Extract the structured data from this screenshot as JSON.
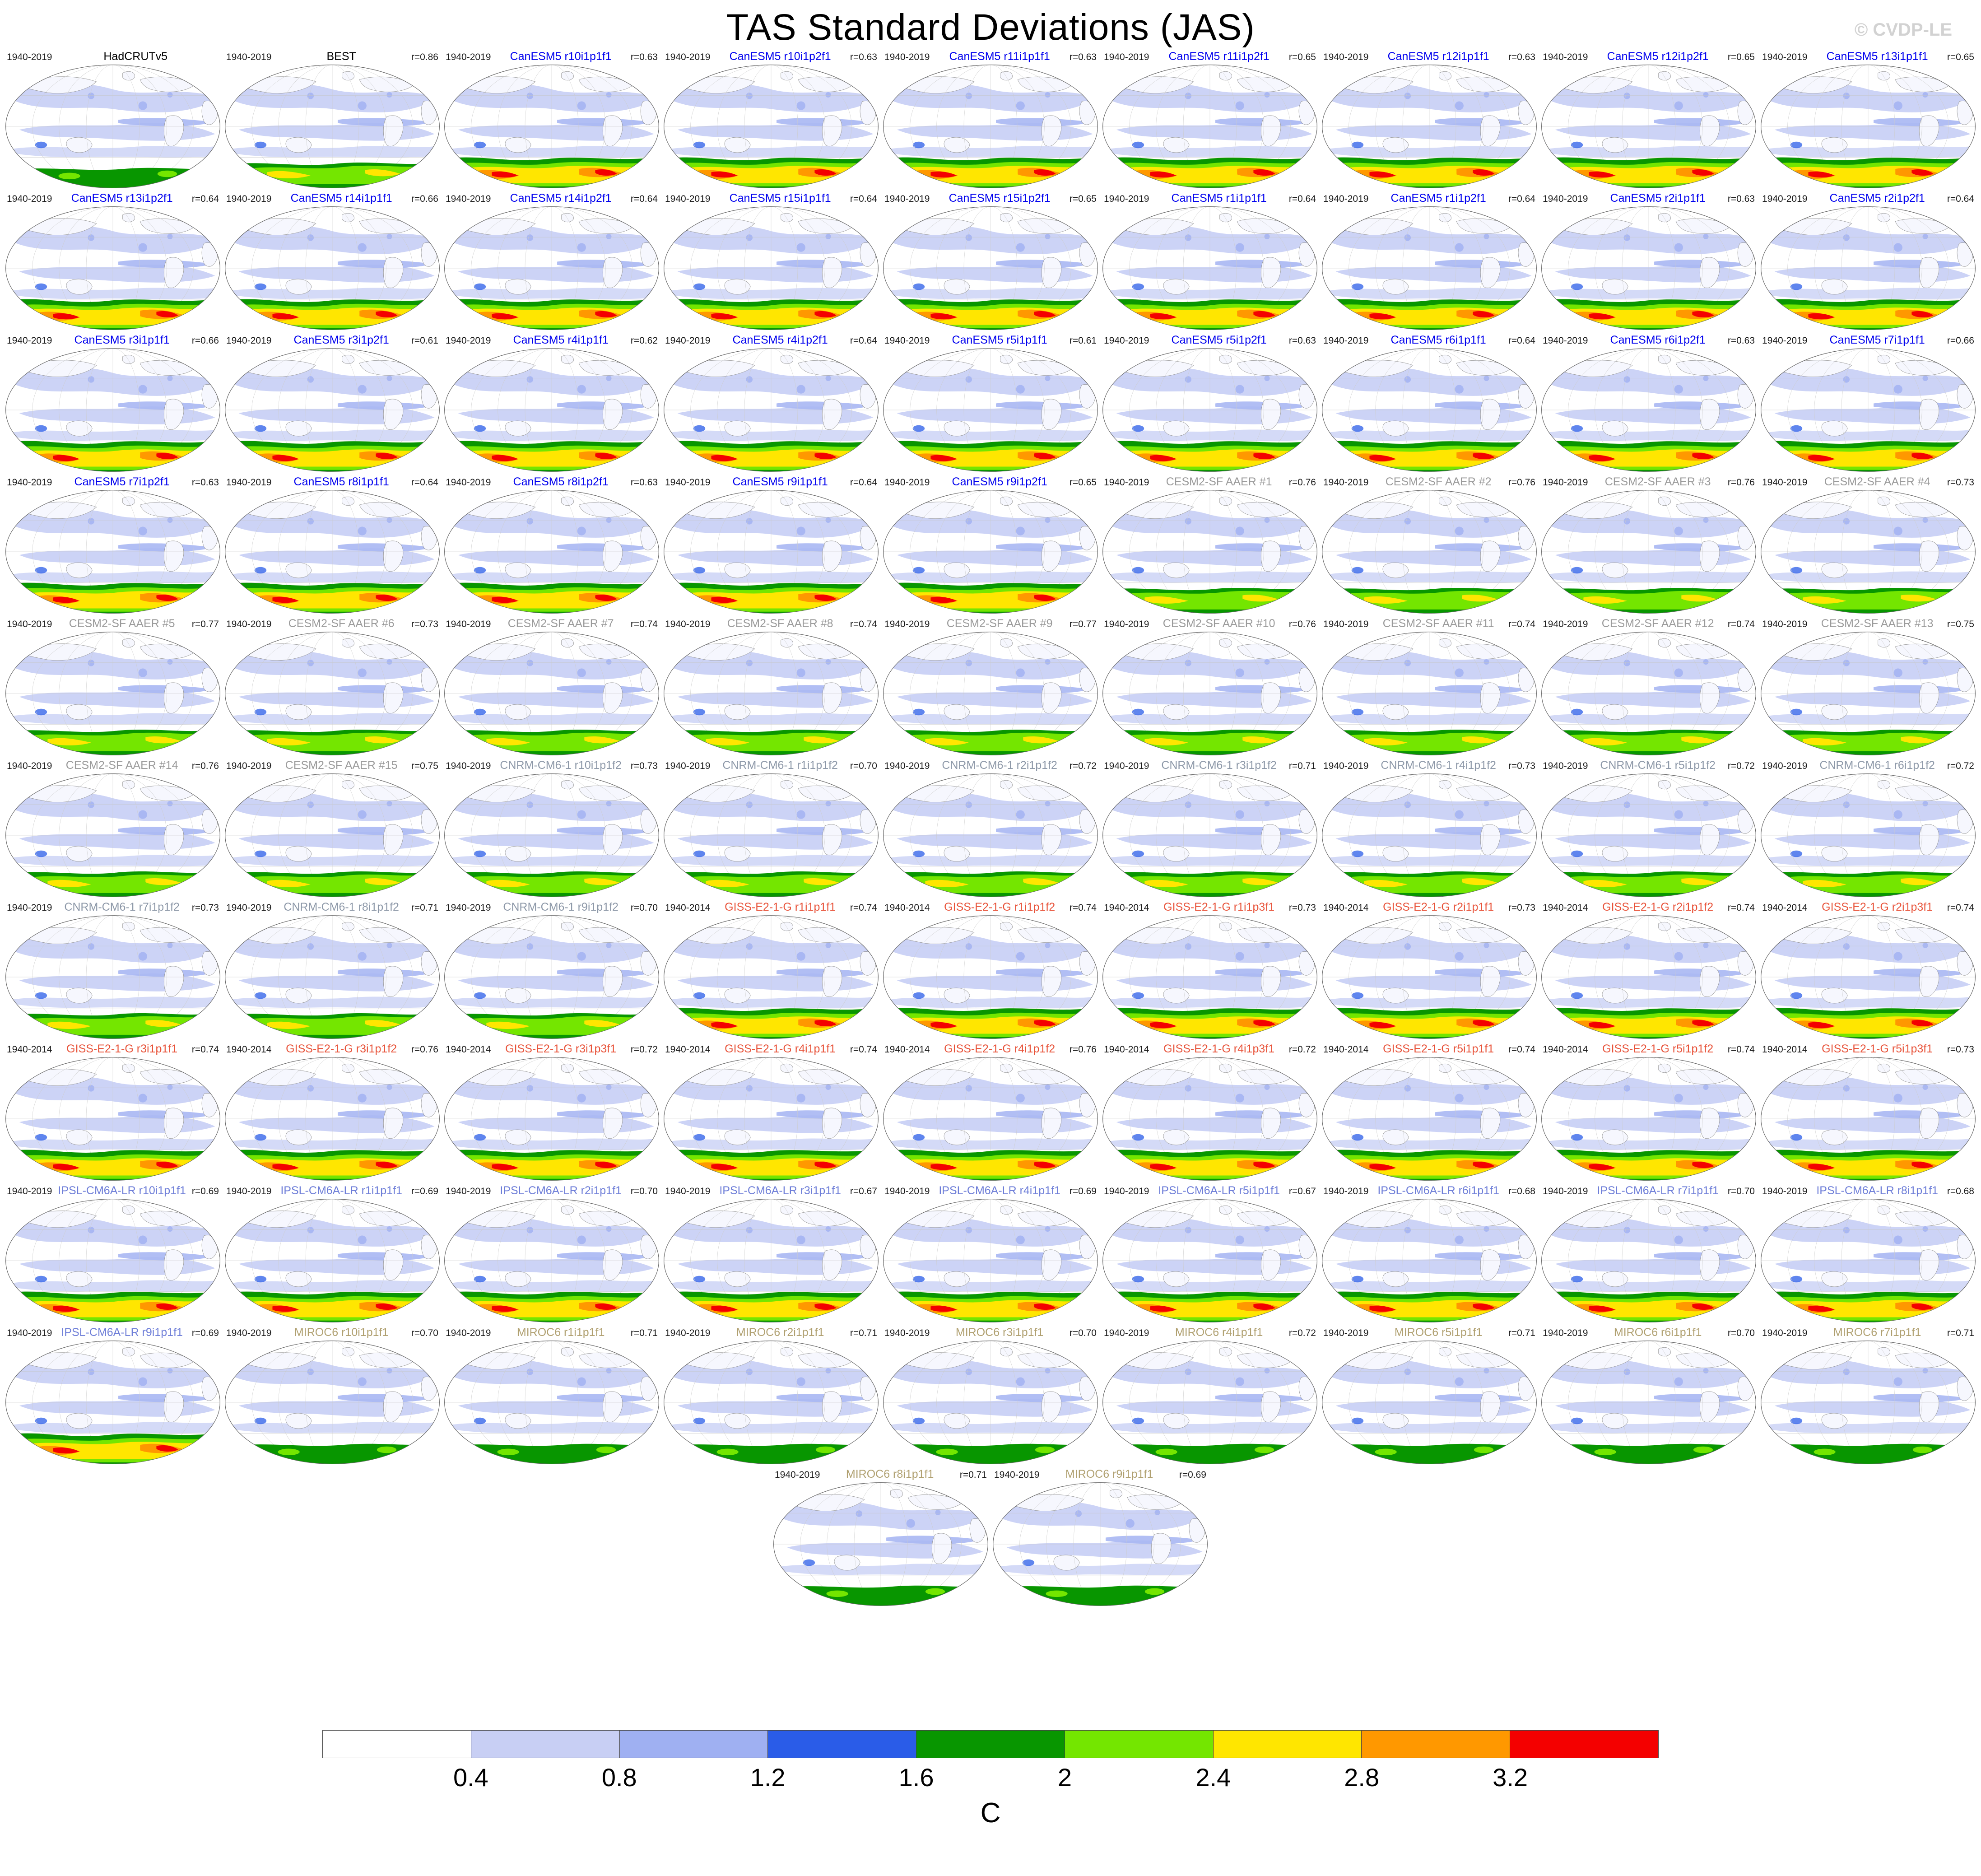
{
  "title": "TAS Standard Deviations (JAS)",
  "watermark": "© CVDP-LE",
  "colorbar": {
    "ticks": [
      "0.4",
      "0.8",
      "1.2",
      "1.6",
      "2",
      "2.4",
      "2.8",
      "3.2"
    ],
    "unit_label": "C",
    "colors": [
      "#FFFFFF",
      "#C8CFF4",
      "#9FB0F2",
      "#2A5CE8",
      "#089600",
      "#74E600",
      "#FFE600",
      "#FF9800",
      "#F40000"
    ]
  },
  "model_styles": {
    "HadCRUTv5": {
      "label_color": "#000000",
      "band": "weak"
    },
    "BEST": {
      "label_color": "#000000",
      "band": "medium"
    },
    "CanESM5": {
      "label_color": "#0000EE",
      "band": "strong"
    },
    "CESM2-SF AAER": {
      "label_color": "#9A9A9A",
      "band": "medium"
    },
    "CNRM-CM6-1": {
      "label_color": "#8D98A8",
      "band": "medium"
    },
    "GISS-E2-1-G": {
      "label_color": "#E8533A",
      "band": "strong"
    },
    "IPSL-CM6A-LR": {
      "label_color": "#6E7ED8",
      "band": "strong"
    },
    "MIROC6": {
      "label_color": "#B0A070",
      "band": "weak"
    }
  },
  "chart_data": {
    "type": "heatmap",
    "title": "TAS Standard Deviations (JAS)",
    "unit": "C",
    "levels": [
      0.4,
      0.8,
      1.2,
      1.6,
      2,
      2.4,
      2.8,
      3.2
    ],
    "legend_position": "bottom",
    "panels": [
      {
        "label": "HadCRUTv5",
        "model": "HadCRUTv5",
        "years": "1940-2019",
        "r": ""
      },
      {
        "label": "BEST",
        "model": "BEST",
        "years": "1940-2019",
        "r": "r=0.86"
      },
      {
        "label": "CanESM5 r10i1p1f1",
        "model": "CanESM5",
        "years": "1940-2019",
        "r": "r=0.63"
      },
      {
        "label": "CanESM5 r10i1p2f1",
        "model": "CanESM5",
        "years": "1940-2019",
        "r": "r=0.63"
      },
      {
        "label": "CanESM5 r11i1p1f1",
        "model": "CanESM5",
        "years": "1940-2019",
        "r": "r=0.63"
      },
      {
        "label": "CanESM5 r11i1p2f1",
        "model": "CanESM5",
        "years": "1940-2019",
        "r": "r=0.65"
      },
      {
        "label": "CanESM5 r12i1p1f1",
        "model": "CanESM5",
        "years": "1940-2019",
        "r": "r=0.63"
      },
      {
        "label": "CanESM5 r12i1p2f1",
        "model": "CanESM5",
        "years": "1940-2019",
        "r": "r=0.65"
      },
      {
        "label": "CanESM5 r13i1p1f1",
        "model": "CanESM5",
        "years": "1940-2019",
        "r": "r=0.65"
      },
      {
        "label": "CanESM5 r13i1p2f1",
        "model": "CanESM5",
        "years": "1940-2019",
        "r": "r=0.64"
      },
      {
        "label": "CanESM5 r14i1p1f1",
        "model": "CanESM5",
        "years": "1940-2019",
        "r": "r=0.66"
      },
      {
        "label": "CanESM5 r14i1p2f1",
        "model": "CanESM5",
        "years": "1940-2019",
        "r": "r=0.64"
      },
      {
        "label": "CanESM5 r15i1p1f1",
        "model": "CanESM5",
        "years": "1940-2019",
        "r": "r=0.64"
      },
      {
        "label": "CanESM5 r15i1p2f1",
        "model": "CanESM5",
        "years": "1940-2019",
        "r": "r=0.65"
      },
      {
        "label": "CanESM5 r1i1p1f1",
        "model": "CanESM5",
        "years": "1940-2019",
        "r": "r=0.64"
      },
      {
        "label": "CanESM5 r1i1p2f1",
        "model": "CanESM5",
        "years": "1940-2019",
        "r": "r=0.64"
      },
      {
        "label": "CanESM5 r2i1p1f1",
        "model": "CanESM5",
        "years": "1940-2019",
        "r": "r=0.63"
      },
      {
        "label": "CanESM5 r2i1p2f1",
        "model": "CanESM5",
        "years": "1940-2019",
        "r": "r=0.64"
      },
      {
        "label": "CanESM5 r3i1p1f1",
        "model": "CanESM5",
        "years": "1940-2019",
        "r": "r=0.66"
      },
      {
        "label": "CanESM5 r3i1p2f1",
        "model": "CanESM5",
        "years": "1940-2019",
        "r": "r=0.61"
      },
      {
        "label": "CanESM5 r4i1p1f1",
        "model": "CanESM5",
        "years": "1940-2019",
        "r": "r=0.62"
      },
      {
        "label": "CanESM5 r4i1p2f1",
        "model": "CanESM5",
        "years": "1940-2019",
        "r": "r=0.64"
      },
      {
        "label": "CanESM5 r5i1p1f1",
        "model": "CanESM5",
        "years": "1940-2019",
        "r": "r=0.61"
      },
      {
        "label": "CanESM5 r5i1p2f1",
        "model": "CanESM5",
        "years": "1940-2019",
        "r": "r=0.63"
      },
      {
        "label": "CanESM5 r6i1p1f1",
        "model": "CanESM5",
        "years": "1940-2019",
        "r": "r=0.64"
      },
      {
        "label": "CanESM5 r6i1p2f1",
        "model": "CanESM5",
        "years": "1940-2019",
        "r": "r=0.63"
      },
      {
        "label": "CanESM5 r7i1p1f1",
        "model": "CanESM5",
        "years": "1940-2019",
        "r": "r=0.66"
      },
      {
        "label": "CanESM5 r7i1p2f1",
        "model": "CanESM5",
        "years": "1940-2019",
        "r": "r=0.63"
      },
      {
        "label": "CanESM5 r8i1p1f1",
        "model": "CanESM5",
        "years": "1940-2019",
        "r": "r=0.64"
      },
      {
        "label": "CanESM5 r8i1p2f1",
        "model": "CanESM5",
        "years": "1940-2019",
        "r": "r=0.63"
      },
      {
        "label": "CanESM5 r9i1p1f1",
        "model": "CanESM5",
        "years": "1940-2019",
        "r": "r=0.64"
      },
      {
        "label": "CanESM5 r9i1p2f1",
        "model": "CanESM5",
        "years": "1940-2019",
        "r": "r=0.65"
      },
      {
        "label": "CESM2-SF AAER #1",
        "model": "CESM2-SF AAER",
        "years": "1940-2019",
        "r": "r=0.76"
      },
      {
        "label": "CESM2-SF AAER #2",
        "model": "CESM2-SF AAER",
        "years": "1940-2019",
        "r": "r=0.76"
      },
      {
        "label": "CESM2-SF AAER #3",
        "model": "CESM2-SF AAER",
        "years": "1940-2019",
        "r": "r=0.76"
      },
      {
        "label": "CESM2-SF AAER #4",
        "model": "CESM2-SF AAER",
        "years": "1940-2019",
        "r": "r=0.73"
      },
      {
        "label": "CESM2-SF AAER #5",
        "model": "CESM2-SF AAER",
        "years": "1940-2019",
        "r": "r=0.77"
      },
      {
        "label": "CESM2-SF AAER #6",
        "model": "CESM2-SF AAER",
        "years": "1940-2019",
        "r": "r=0.73"
      },
      {
        "label": "CESM2-SF AAER #7",
        "model": "CESM2-SF AAER",
        "years": "1940-2019",
        "r": "r=0.74"
      },
      {
        "label": "CESM2-SF AAER #8",
        "model": "CESM2-SF AAER",
        "years": "1940-2019",
        "r": "r=0.74"
      },
      {
        "label": "CESM2-SF AAER #9",
        "model": "CESM2-SF AAER",
        "years": "1940-2019",
        "r": "r=0.77"
      },
      {
        "label": "CESM2-SF AAER #10",
        "model": "CESM2-SF AAER",
        "years": "1940-2019",
        "r": "r=0.76"
      },
      {
        "label": "CESM2-SF AAER #11",
        "model": "CESM2-SF AAER",
        "years": "1940-2019",
        "r": "r=0.74"
      },
      {
        "label": "CESM2-SF AAER #12",
        "model": "CESM2-SF AAER",
        "years": "1940-2019",
        "r": "r=0.74"
      },
      {
        "label": "CESM2-SF AAER #13",
        "model": "CESM2-SF AAER",
        "years": "1940-2019",
        "r": "r=0.75"
      },
      {
        "label": "CESM2-SF AAER #14",
        "model": "CESM2-SF AAER",
        "years": "1940-2019",
        "r": "r=0.76"
      },
      {
        "label": "CESM2-SF AAER #15",
        "model": "CESM2-SF AAER",
        "years": "1940-2019",
        "r": "r=0.75"
      },
      {
        "label": "CNRM-CM6-1 r10i1p1f2",
        "model": "CNRM-CM6-1",
        "years": "1940-2019",
        "r": "r=0.73"
      },
      {
        "label": "CNRM-CM6-1 r1i1p1f2",
        "model": "CNRM-CM6-1",
        "years": "1940-2019",
        "r": "r=0.70"
      },
      {
        "label": "CNRM-CM6-1 r2i1p1f2",
        "model": "CNRM-CM6-1",
        "years": "1940-2019",
        "r": "r=0.72"
      },
      {
        "label": "CNRM-CM6-1 r3i1p1f2",
        "model": "CNRM-CM6-1",
        "years": "1940-2019",
        "r": "r=0.71"
      },
      {
        "label": "CNRM-CM6-1 r4i1p1f2",
        "model": "CNRM-CM6-1",
        "years": "1940-2019",
        "r": "r=0.73"
      },
      {
        "label": "CNRM-CM6-1 r5i1p1f2",
        "model": "CNRM-CM6-1",
        "years": "1940-2019",
        "r": "r=0.72"
      },
      {
        "label": "CNRM-CM6-1 r6i1p1f2",
        "model": "CNRM-CM6-1",
        "years": "1940-2019",
        "r": "r=0.72"
      },
      {
        "label": "CNRM-CM6-1 r7i1p1f2",
        "model": "CNRM-CM6-1",
        "years": "1940-2019",
        "r": "r=0.73"
      },
      {
        "label": "CNRM-CM6-1 r8i1p1f2",
        "model": "CNRM-CM6-1",
        "years": "1940-2019",
        "r": "r=0.71"
      },
      {
        "label": "CNRM-CM6-1 r9i1p1f2",
        "model": "CNRM-CM6-1",
        "years": "1940-2019",
        "r": "r=0.70"
      },
      {
        "label": "GISS-E2-1-G r1i1p1f1",
        "model": "GISS-E2-1-G",
        "years": "1940-2014",
        "r": "r=0.74"
      },
      {
        "label": "GISS-E2-1-G r1i1p1f2",
        "model": "GISS-E2-1-G",
        "years": "1940-2014",
        "r": "r=0.74"
      },
      {
        "label": "GISS-E2-1-G r1i1p3f1",
        "model": "GISS-E2-1-G",
        "years": "1940-2014",
        "r": "r=0.73"
      },
      {
        "label": "GISS-E2-1-G r2i1p1f1",
        "model": "GISS-E2-1-G",
        "years": "1940-2014",
        "r": "r=0.73"
      },
      {
        "label": "GISS-E2-1-G r2i1p1f2",
        "model": "GISS-E2-1-G",
        "years": "1940-2014",
        "r": "r=0.74"
      },
      {
        "label": "GISS-E2-1-G r2i1p3f1",
        "model": "GISS-E2-1-G",
        "years": "1940-2014",
        "r": "r=0.74"
      },
      {
        "label": "GISS-E2-1-G r3i1p1f1",
        "model": "GISS-E2-1-G",
        "years": "1940-2014",
        "r": "r=0.74"
      },
      {
        "label": "GISS-E2-1-G r3i1p1f2",
        "model": "GISS-E2-1-G",
        "years": "1940-2014",
        "r": "r=0.76"
      },
      {
        "label": "GISS-E2-1-G r3i1p3f1",
        "model": "GISS-E2-1-G",
        "years": "1940-2014",
        "r": "r=0.72"
      },
      {
        "label": "GISS-E2-1-G r4i1p1f1",
        "model": "GISS-E2-1-G",
        "years": "1940-2014",
        "r": "r=0.74"
      },
      {
        "label": "GISS-E2-1-G r4i1p1f2",
        "model": "GISS-E2-1-G",
        "years": "1940-2014",
        "r": "r=0.76"
      },
      {
        "label": "GISS-E2-1-G r4i1p3f1",
        "model": "GISS-E2-1-G",
        "years": "1940-2014",
        "r": "r=0.72"
      },
      {
        "label": "GISS-E2-1-G r5i1p1f1",
        "model": "GISS-E2-1-G",
        "years": "1940-2014",
        "r": "r=0.74"
      },
      {
        "label": "GISS-E2-1-G r5i1p1f2",
        "model": "GISS-E2-1-G",
        "years": "1940-2014",
        "r": "r=0.74"
      },
      {
        "label": "GISS-E2-1-G r5i1p3f1",
        "model": "GISS-E2-1-G",
        "years": "1940-2014",
        "r": "r=0.73"
      },
      {
        "label": "IPSL-CM6A-LR r10i1p1f1",
        "model": "IPSL-CM6A-LR",
        "years": "1940-2019",
        "r": "r=0.69"
      },
      {
        "label": "IPSL-CM6A-LR r1i1p1f1",
        "model": "IPSL-CM6A-LR",
        "years": "1940-2019",
        "r": "r=0.69"
      },
      {
        "label": "IPSL-CM6A-LR r2i1p1f1",
        "model": "IPSL-CM6A-LR",
        "years": "1940-2019",
        "r": "r=0.70"
      },
      {
        "label": "IPSL-CM6A-LR r3i1p1f1",
        "model": "IPSL-CM6A-LR",
        "years": "1940-2019",
        "r": "r=0.67"
      },
      {
        "label": "IPSL-CM6A-LR r4i1p1f1",
        "model": "IPSL-CM6A-LR",
        "years": "1940-2019",
        "r": "r=0.69"
      },
      {
        "label": "IPSL-CM6A-LR r5i1p1f1",
        "model": "IPSL-CM6A-LR",
        "years": "1940-2019",
        "r": "r=0.67"
      },
      {
        "label": "IPSL-CM6A-LR r6i1p1f1",
        "model": "IPSL-CM6A-LR",
        "years": "1940-2019",
        "r": "r=0.68"
      },
      {
        "label": "IPSL-CM6A-LR r7i1p1f1",
        "model": "IPSL-CM6A-LR",
        "years": "1940-2019",
        "r": "r=0.70"
      },
      {
        "label": "IPSL-CM6A-LR r8i1p1f1",
        "model": "IPSL-CM6A-LR",
        "years": "1940-2019",
        "r": "r=0.68"
      },
      {
        "label": "IPSL-CM6A-LR r9i1p1f1",
        "model": "IPSL-CM6A-LR",
        "years": "1940-2019",
        "r": "r=0.69"
      },
      {
        "label": "MIROC6 r10i1p1f1",
        "model": "MIROC6",
        "years": "1940-2019",
        "r": "r=0.70"
      },
      {
        "label": "MIROC6 r1i1p1f1",
        "model": "MIROC6",
        "years": "1940-2019",
        "r": "r=0.71"
      },
      {
        "label": "MIROC6 r2i1p1f1",
        "model": "MIROC6",
        "years": "1940-2019",
        "r": "r=0.71"
      },
      {
        "label": "MIROC6 r3i1p1f1",
        "model": "MIROC6",
        "years": "1940-2019",
        "r": "r=0.70"
      },
      {
        "label": "MIROC6 r4i1p1f1",
        "model": "MIROC6",
        "years": "1940-2019",
        "r": "r=0.72"
      },
      {
        "label": "MIROC6 r5i1p1f1",
        "model": "MIROC6",
        "years": "1940-2019",
        "r": "r=0.71"
      },
      {
        "label": "MIROC6 r6i1p1f1",
        "model": "MIROC6",
        "years": "1940-2019",
        "r": "r=0.70"
      },
      {
        "label": "MIROC6 r7i1p1f1",
        "model": "MIROC6",
        "years": "1940-2019",
        "r": "r=0.71"
      },
      {
        "label": "MIROC6 r8i1p1f1",
        "model": "MIROC6",
        "years": "1940-2019",
        "r": "r=0.71"
      },
      {
        "label": "MIROC6 r9i1p1f1",
        "model": "MIROC6",
        "years": "1940-2019",
        "r": "r=0.69"
      }
    ]
  }
}
